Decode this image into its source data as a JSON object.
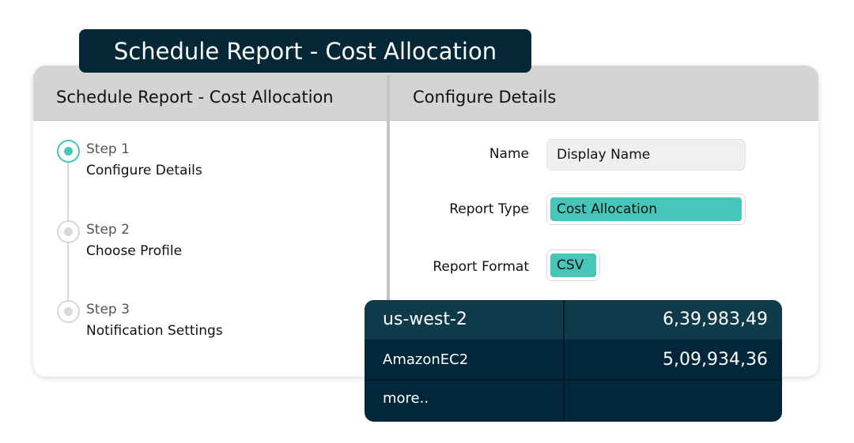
{
  "banner_title": "Schedule Report - Cost Allocation",
  "left_header": "Schedule Report - Cost Allocation",
  "right_header": "Configure Details",
  "steps": [
    {
      "step": "Step 1",
      "name": "Configure Details",
      "active": true
    },
    {
      "step": "Step 2",
      "name": "Choose Profile",
      "active": false
    },
    {
      "step": "Step 3",
      "name": "Notification Settings",
      "active": false
    }
  ],
  "form": {
    "name_label": "Name",
    "name_value": "Display Name",
    "type_label": "Report Type",
    "type_value": "Cost Allocation",
    "format_label": "Report Format",
    "format_value": "CSV"
  },
  "table": [
    {
      "label": "us-west-2",
      "value": "6,39,983,49"
    },
    {
      "label": "AmazonEC2",
      "value": "5,09,934,36"
    },
    {
      "label": "more..",
      "value": ""
    }
  ],
  "colors": {
    "accent": "#45c6b8",
    "dark": "#042838"
  }
}
